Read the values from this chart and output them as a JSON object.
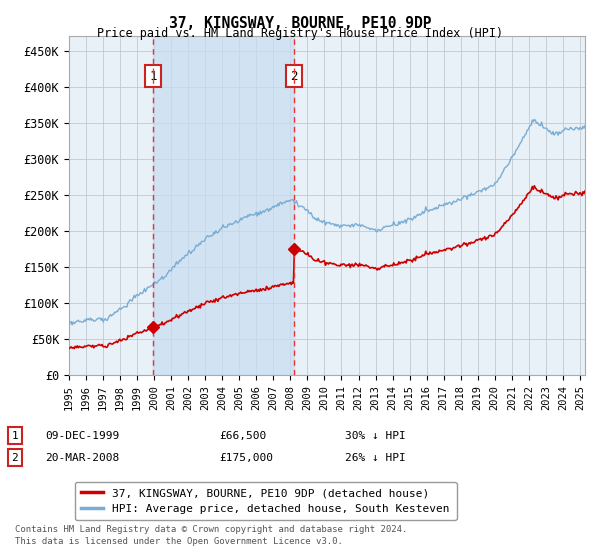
{
  "title": "37, KINGSWAY, BOURNE, PE10 9DP",
  "subtitle": "Price paid vs. HM Land Registry's House Price Index (HPI)",
  "ylabel_ticks": [
    "£0",
    "£50K",
    "£100K",
    "£150K",
    "£200K",
    "£250K",
    "£300K",
    "£350K",
    "£400K",
    "£450K"
  ],
  "ylim": [
    0,
    470000
  ],
  "xlim_start": 1995.0,
  "xlim_end": 2025.3,
  "sale1_x": 1999.94,
  "sale1_y": 66500,
  "sale2_x": 2008.22,
  "sale2_y": 175000,
  "line1_label": "37, KINGSWAY, BOURNE, PE10 9DP (detached house)",
  "line2_label": "HPI: Average price, detached house, South Kesteven",
  "red_color": "#cc0000",
  "blue_color": "#7aadd4",
  "blue_fill": "#ddeeff",
  "vline_color": "#ee3333",
  "box_color": "#cc2222",
  "background_color": "#e8f0f8",
  "grid_color": "#c0c8d0",
  "sale1_date": "09-DEC-1999",
  "sale1_price": "£66,500",
  "sale1_hpi": "30% ↓ HPI",
  "sale2_date": "20-MAR-2008",
  "sale2_price": "£175,000",
  "sale2_hpi": "26% ↓ HPI",
  "footnote": "Contains HM Land Registry data © Crown copyright and database right 2024.\nThis data is licensed under the Open Government Licence v3.0."
}
